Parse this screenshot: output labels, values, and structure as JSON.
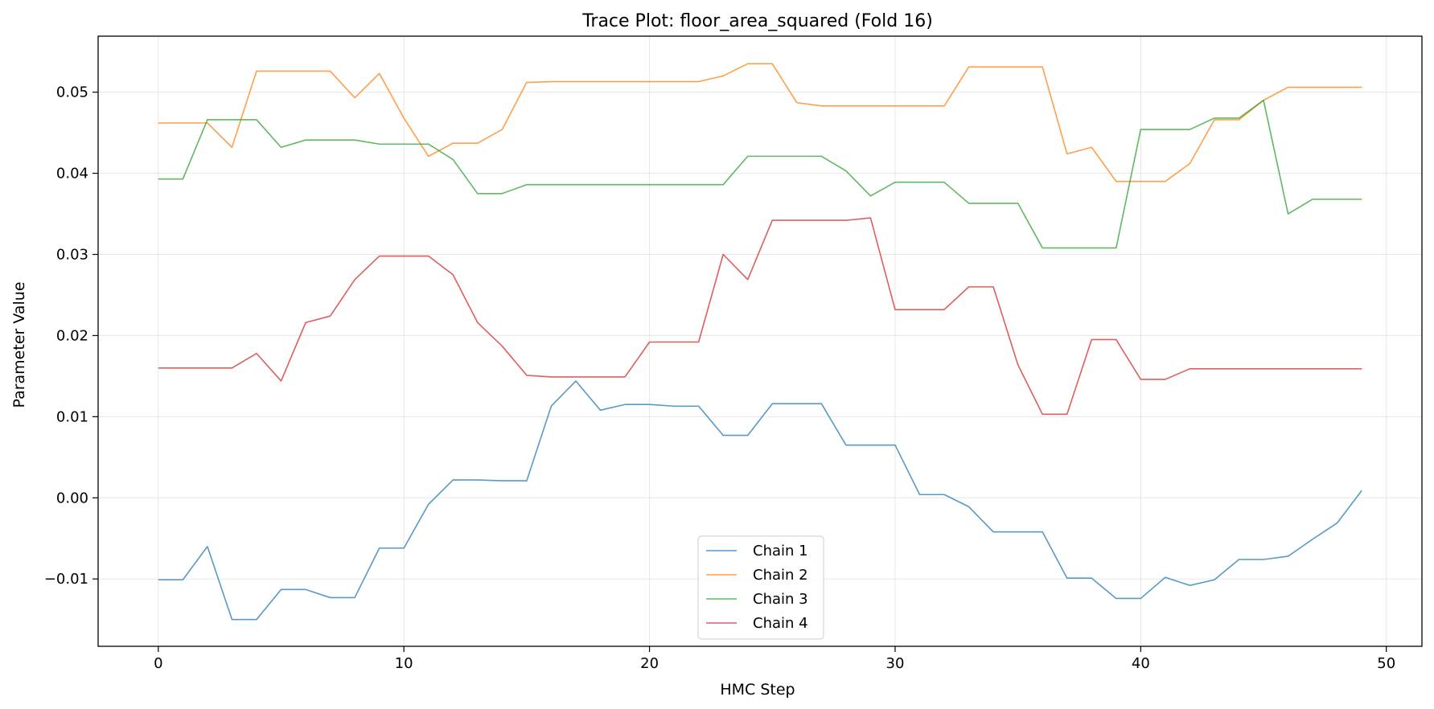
{
  "chart_data": {
    "type": "line",
    "title": "Trace Plot: floor_area_squared (Fold 16)",
    "xlabel": "HMC Step",
    "ylabel": "Parameter Value",
    "xlim": [
      -2.45,
      51.45
    ],
    "ylim": [
      -0.0183,
      0.0569
    ],
    "x_ticks": [
      0,
      10,
      20,
      30,
      40,
      50
    ],
    "x_tick_labels": [
      "0",
      "10",
      "20",
      "30",
      "40",
      "50"
    ],
    "y_ticks": [
      -0.01,
      0.0,
      0.01,
      0.02,
      0.03,
      0.04,
      0.05
    ],
    "y_tick_labels": [
      "−0.01",
      "0.00",
      "0.01",
      "0.02",
      "0.03",
      "0.04",
      "0.05"
    ],
    "grid": true,
    "legend_position": "bottom-center",
    "x": [
      0,
      1,
      2,
      3,
      4,
      5,
      6,
      7,
      8,
      9,
      10,
      11,
      12,
      13,
      14,
      15,
      16,
      17,
      18,
      19,
      20,
      21,
      22,
      23,
      24,
      25,
      26,
      27,
      28,
      29,
      30,
      31,
      32,
      33,
      34,
      35,
      36,
      37,
      38,
      39,
      40,
      41,
      42,
      43,
      44,
      45,
      46,
      47,
      48,
      49
    ],
    "series": [
      {
        "name": "Chain 1",
        "color": "#1f77b4",
        "values": [
          -0.0101,
          -0.0101,
          -0.006,
          -0.015,
          -0.015,
          -0.0113,
          -0.0113,
          -0.0123,
          -0.0123,
          -0.0062,
          -0.0062,
          -0.0008,
          0.0022,
          0.0022,
          0.0021,
          0.0021,
          0.0113,
          0.0144,
          0.0108,
          0.0115,
          0.0115,
          0.0113,
          0.0113,
          0.0077,
          0.0077,
          0.0116,
          0.0116,
          0.0116,
          0.0065,
          0.0065,
          0.0065,
          0.0004,
          0.0004,
          -0.0011,
          -0.0042,
          -0.0042,
          -0.0042,
          -0.0099,
          -0.0099,
          -0.0124,
          -0.0124,
          -0.0098,
          -0.0108,
          -0.0101,
          -0.0076,
          -0.0076,
          -0.0072,
          -0.0051,
          -0.0031,
          0.0009
        ]
      },
      {
        "name": "Chain 2",
        "color": "#ff7f0e",
        "values": [
          0.0462,
          0.0462,
          0.0462,
          0.0432,
          0.0526,
          0.0526,
          0.0526,
          0.0526,
          0.0493,
          0.0523,
          0.0468,
          0.0421,
          0.0437,
          0.0437,
          0.0454,
          0.0512,
          0.0513,
          0.0513,
          0.0513,
          0.0513,
          0.0513,
          0.0513,
          0.0513,
          0.052,
          0.0535,
          0.0535,
          0.0487,
          0.0483,
          0.0483,
          0.0483,
          0.0483,
          0.0483,
          0.0483,
          0.0531,
          0.0531,
          0.0531,
          0.0531,
          0.0424,
          0.0432,
          0.039,
          0.039,
          0.039,
          0.0412,
          0.0466,
          0.0466,
          0.049,
          0.0506,
          0.0506,
          0.0506,
          0.0506
        ]
      },
      {
        "name": "Chain 3",
        "color": "#2ca02c",
        "values": [
          0.0393,
          0.0393,
          0.0466,
          0.0466,
          0.0466,
          0.0432,
          0.0441,
          0.0441,
          0.0441,
          0.0436,
          0.0436,
          0.0436,
          0.0417,
          0.0375,
          0.0375,
          0.0386,
          0.0386,
          0.0386,
          0.0386,
          0.0386,
          0.0386,
          0.0386,
          0.0386,
          0.0386,
          0.0421,
          0.0421,
          0.0421,
          0.0421,
          0.0403,
          0.0372,
          0.0389,
          0.0389,
          0.0389,
          0.0363,
          0.0363,
          0.0363,
          0.0308,
          0.0308,
          0.0308,
          0.0308,
          0.0454,
          0.0454,
          0.0454,
          0.0468,
          0.0468,
          0.049,
          0.035,
          0.0368,
          0.0368,
          0.0368
        ]
      },
      {
        "name": "Chain 4",
        "color": "#d62728",
        "values": [
          0.016,
          0.016,
          0.016,
          0.016,
          0.0178,
          0.0144,
          0.0216,
          0.0224,
          0.0269,
          0.0298,
          0.0298,
          0.0298,
          0.0275,
          0.0216,
          0.0187,
          0.0151,
          0.0149,
          0.0149,
          0.0149,
          0.0149,
          0.0192,
          0.0192,
          0.0192,
          0.03,
          0.0269,
          0.0342,
          0.0342,
          0.0342,
          0.0342,
          0.0345,
          0.0232,
          0.0232,
          0.0232,
          0.026,
          0.026,
          0.0164,
          0.0103,
          0.0103,
          0.0195,
          0.0195,
          0.0146,
          0.0146,
          0.0159,
          0.0159,
          0.0159,
          0.0159,
          0.0159,
          0.0159,
          0.0159,
          0.0159
        ]
      }
    ]
  }
}
